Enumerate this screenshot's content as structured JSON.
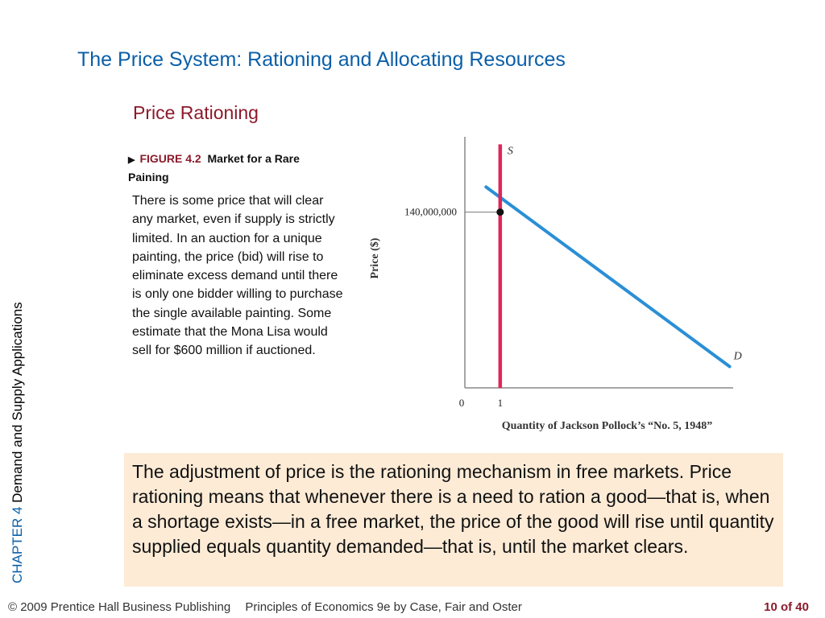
{
  "slide": {
    "title": "The Price System:  Rationing and Allocating Resources",
    "subtitle": "Price Rationing",
    "chapter_num": "CHAPTER 4",
    "chapter_title": "Demand and Supply Applications"
  },
  "figure": {
    "arrow": "▶",
    "number": "FIGURE 4.2",
    "title": "Market for a Rare Paining",
    "description": "There is some price that will clear any market, even if supply is strictly limited. In an auction for a unique painting, the price (bid) will rise to eliminate excess demand until there is only one bidder willing to purchase the single available painting. Some estimate that the Mona Lisa would sell for $600 million if auctioned."
  },
  "chart_data": {
    "type": "line",
    "title": "",
    "xlabel": "Quantity of Jackson Pollock’s “No. 5, 1948”",
    "ylabel": "Price ($)",
    "x_ticks": [
      "0",
      "1"
    ],
    "y_ticks": [
      "140,000,000"
    ],
    "series": [
      {
        "name": "S",
        "type": "vertical",
        "x": 1,
        "color": "#e0255a"
      },
      {
        "name": "D",
        "points": [
          [
            0.6,
            160000000
          ],
          [
            7.5,
            17000000
          ]
        ],
        "color": "#2a8fd6"
      }
    ],
    "equilibrium": {
      "x": 1,
      "y": 140000000
    },
    "xlim": [
      0,
      7.6
    ],
    "ylim": [
      0,
      200000000
    ],
    "grid": false,
    "legend": "none"
  },
  "callout": {
    "text": "The adjustment of price is the rationing mechanism in free markets. Price rationing means that whenever there is a need to ration a good—that is, when a shortage exists—in a free market, the price of the good will rise until quantity supplied equals quantity demanded—that is, until the market clears."
  },
  "footer": {
    "copyright": "© 2009 Prentice Hall Business Publishing",
    "book": "Principles of Economics 9e by Case, Fair and Oster",
    "page": "10 of 40"
  }
}
